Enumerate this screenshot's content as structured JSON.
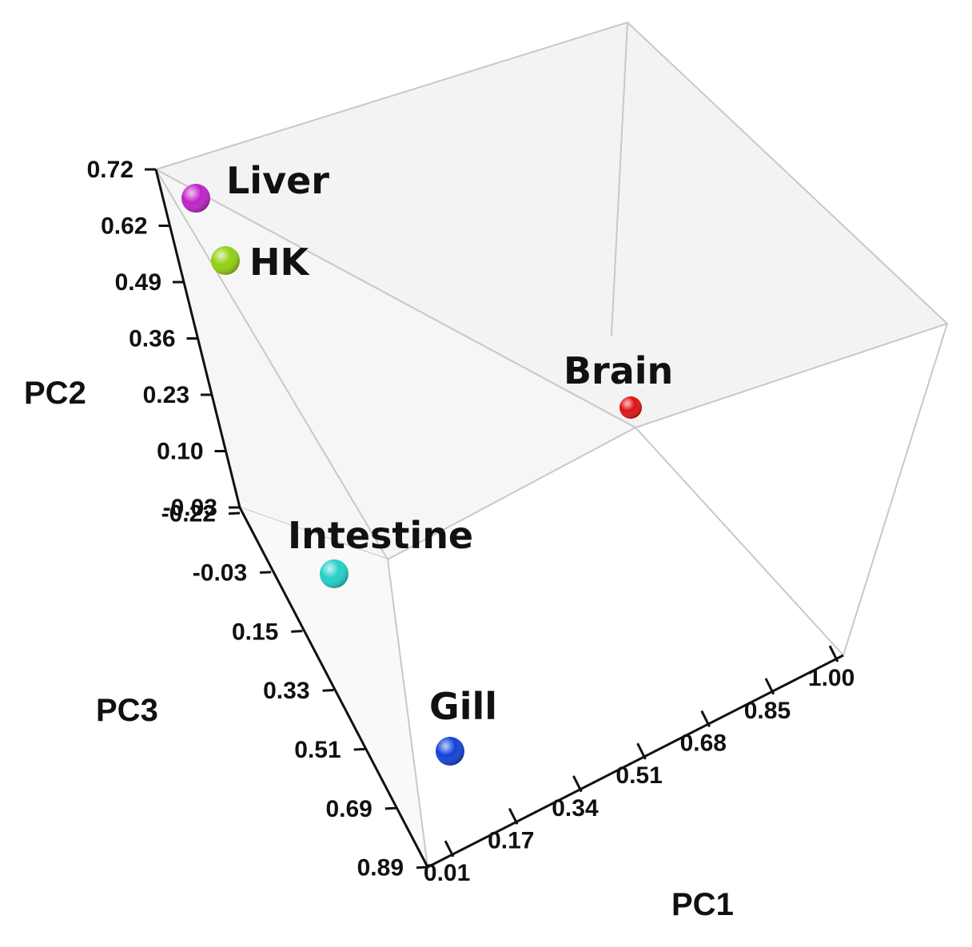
{
  "chart_data": {
    "type": "scatter",
    "projection": "3d",
    "axes": {
      "x": {
        "label": "PC1",
        "ticks": [
          "0.01",
          "0.17",
          "0.34",
          "0.51",
          "0.68",
          "0.85",
          "1.00"
        ],
        "range": [
          0.01,
          1.0
        ]
      },
      "y": {
        "label": "PC2",
        "ticks": [
          "-0.03",
          "0.10",
          "0.23",
          "0.36",
          "0.49",
          "0.62",
          "0.72"
        ],
        "range": [
          -0.03,
          0.72
        ]
      },
      "z": {
        "label": "PC3",
        "ticks": [
          "-0.22",
          "-0.03",
          "0.15",
          "0.33",
          "0.51",
          "0.69",
          "0.89"
        ],
        "range": [
          -0.22,
          0.89
        ]
      }
    },
    "points": [
      {
        "label": "Liver",
        "x": 0.02,
        "y": 0.7,
        "z": -0.2,
        "color": "#c020c8"
      },
      {
        "label": "HK",
        "x": 0.08,
        "y": 0.6,
        "z": -0.2,
        "color": "#90d010"
      },
      {
        "label": "Brain",
        "x": 0.95,
        "y": 0.2,
        "z": -0.2,
        "color": "#e01010"
      },
      {
        "label": "Intestine",
        "x": 0.01,
        "y": -0.03,
        "z": 0.15,
        "color": "#20d0c8"
      },
      {
        "label": "Gill",
        "x": 0.06,
        "y": -0.03,
        "z": 0.8,
        "color": "#1040d8"
      }
    ],
    "grid": false,
    "legend": "none"
  }
}
